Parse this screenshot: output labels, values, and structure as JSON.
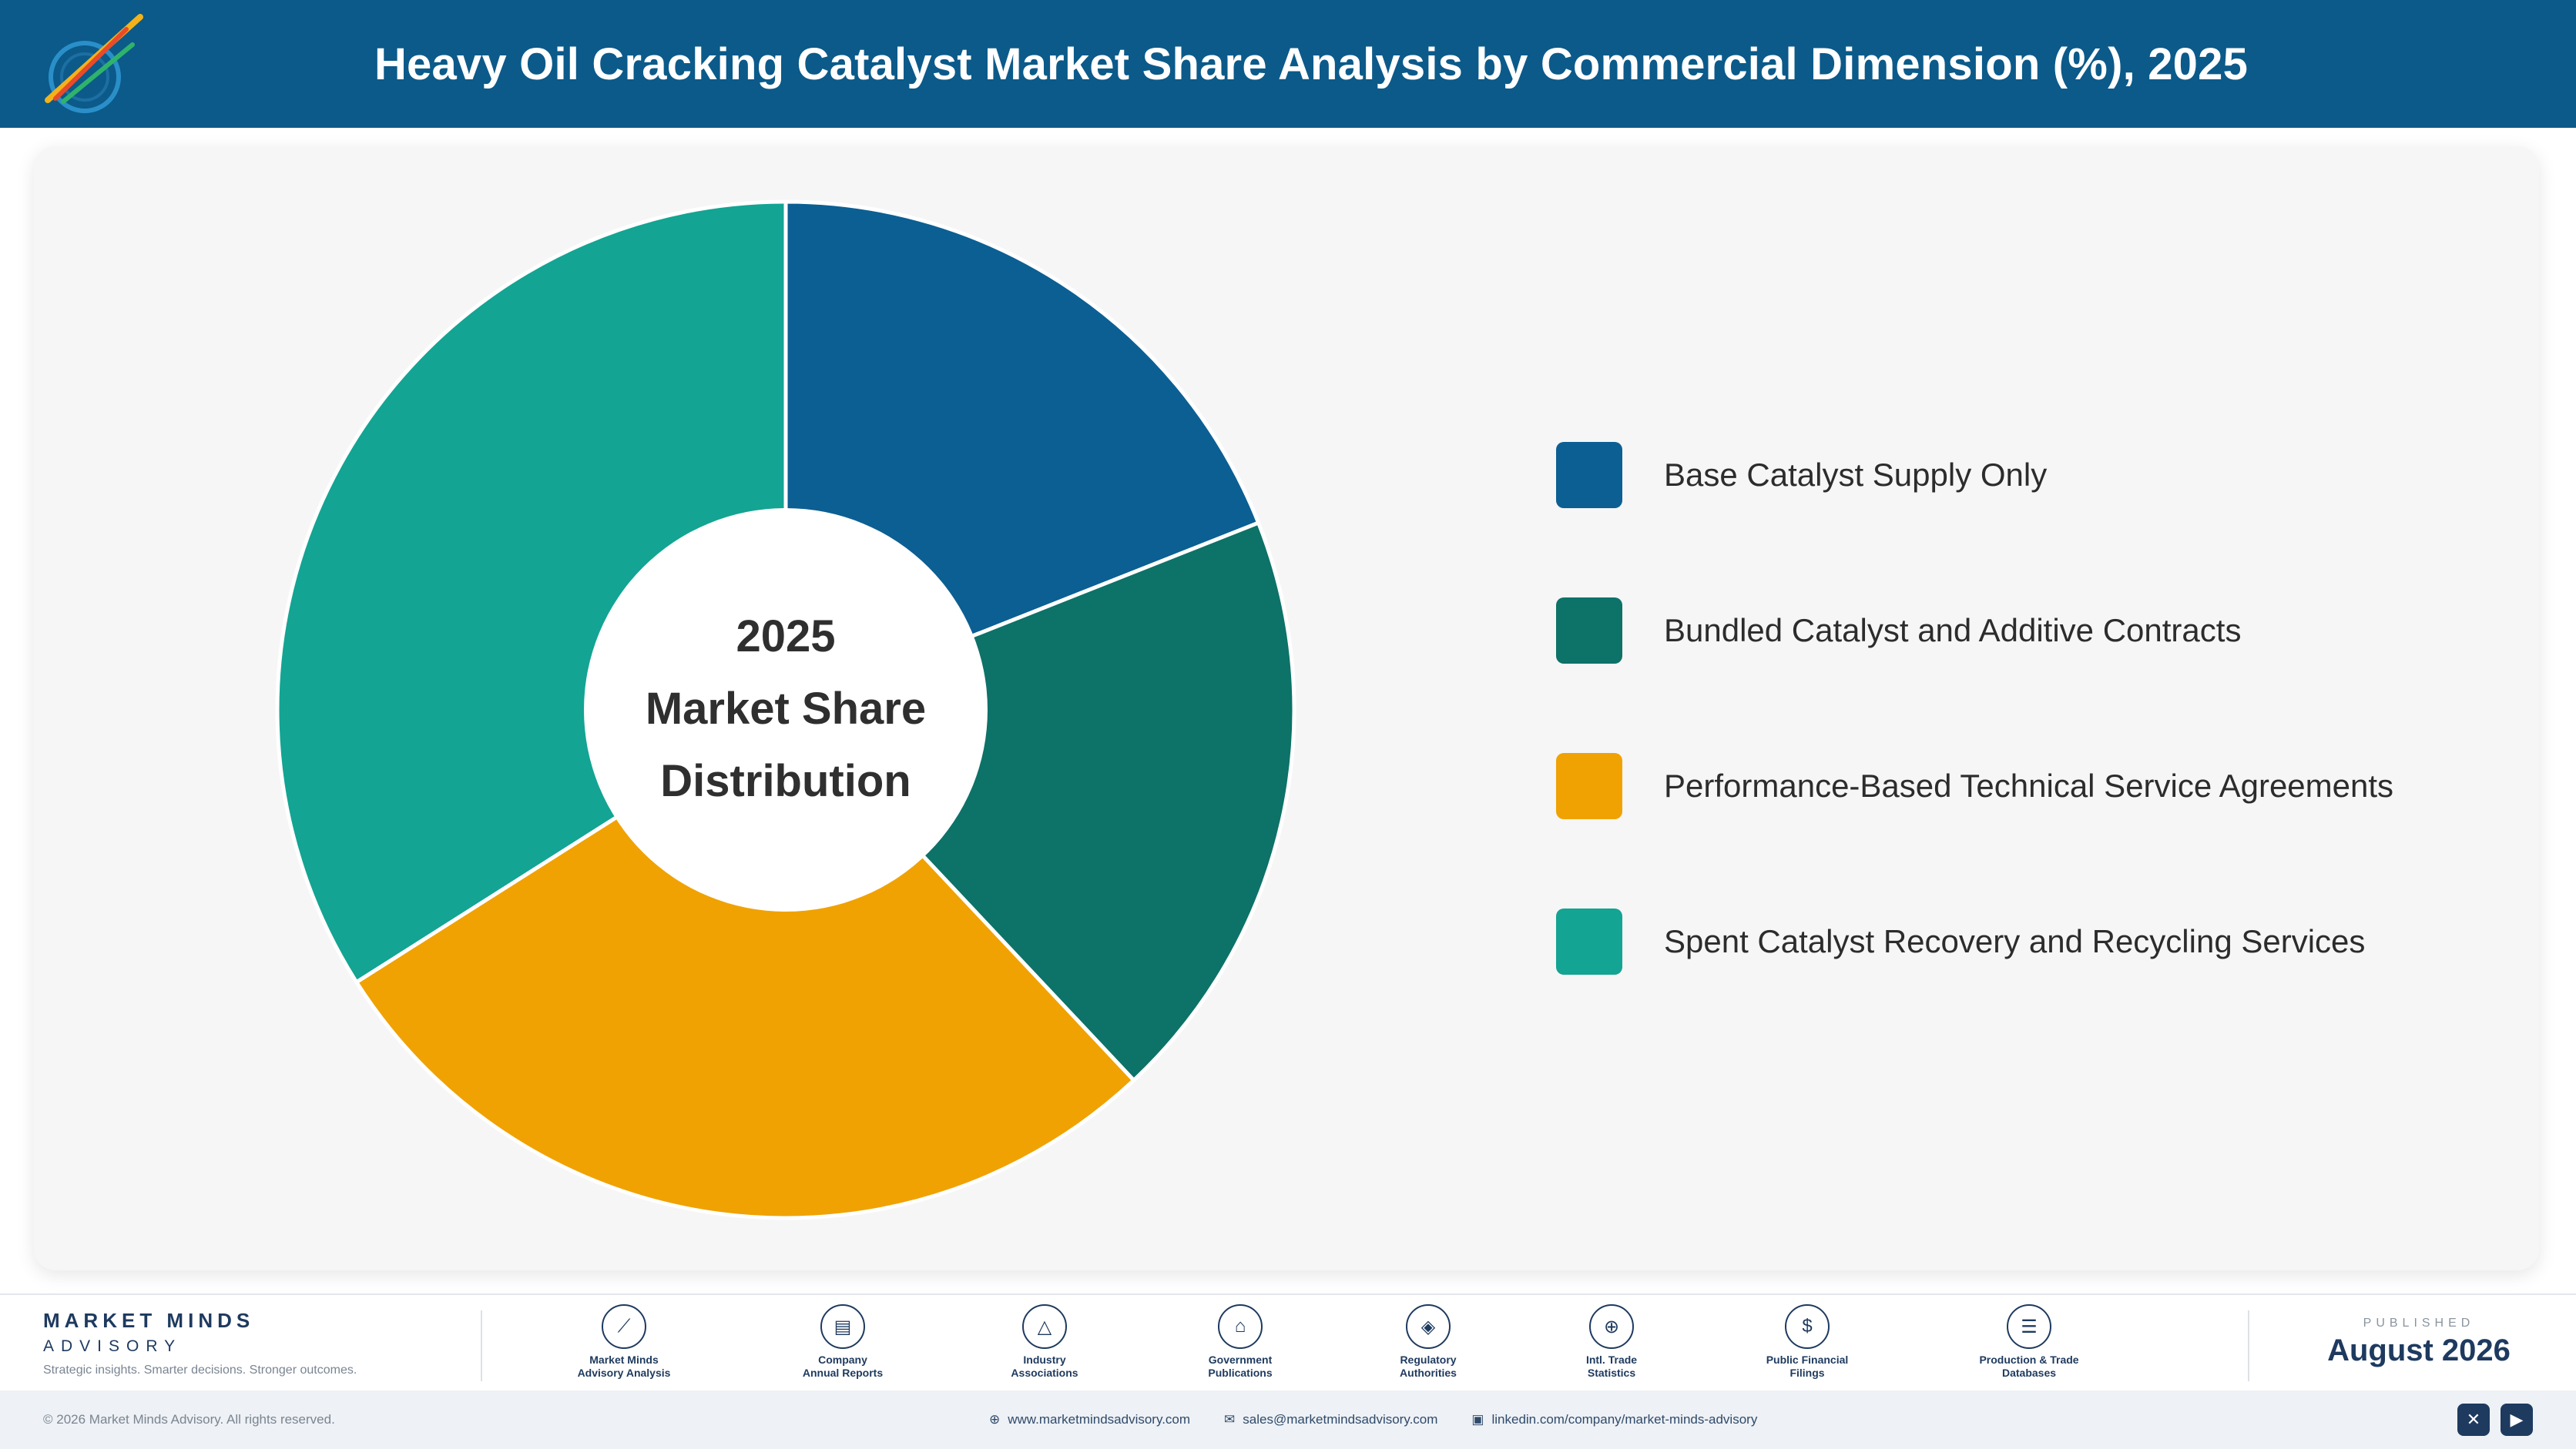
{
  "header": {
    "title": "Heavy Oil Cracking Catalyst Market Share Analysis by Commercial Dimension (%), 2025"
  },
  "chart_data": {
    "type": "pie",
    "center_label": [
      "2025",
      "Market Share",
      "Distribution"
    ],
    "categories": [
      "Base Catalyst Supply Only",
      "Bundled Catalyst and Additive Contracts",
      "Performance-Based Technical Service Agreements",
      "Spent Catalyst Recovery and Recycling Services"
    ],
    "values": [
      19,
      19,
      28,
      34
    ],
    "colors": [
      "#0b5f93",
      "#0d7268",
      "#f0a202",
      "#13a493"
    ],
    "legend_position": "right"
  },
  "footer": {
    "brand_line1": "MARKET MINDS",
    "brand_line2": "ADVISORY",
    "tagline": "Strategic insights. Smarter decisions. Stronger outcomes.",
    "sources": [
      {
        "icon": "trend-line-icon",
        "glyph": "⟋",
        "line1": "Market Minds",
        "line2": "Advisory Analysis"
      },
      {
        "icon": "document-icon",
        "glyph": "▤",
        "line1": "Company",
        "line2": "Annual Reports"
      },
      {
        "icon": "network-icon",
        "glyph": "△",
        "line1": "Industry",
        "line2": "Associations"
      },
      {
        "icon": "government-building-icon",
        "glyph": "⌂",
        "line1": "Government",
        "line2": "Publications"
      },
      {
        "icon": "shield-icon",
        "glyph": "◈",
        "line1": "Regulatory",
        "line2": "Authorities"
      },
      {
        "icon": "globe-icon",
        "glyph": "⊕",
        "line1": "Intl. Trade",
        "line2": "Statistics"
      },
      {
        "icon": "currency-icon",
        "glyph": "$",
        "line1": "Public Financial",
        "line2": "Filings"
      },
      {
        "icon": "database-icon",
        "glyph": "☰",
        "line1": "Production & Trade",
        "line2": "Databases"
      }
    ],
    "published_label": "PUBLISHED",
    "published_date": "August 2026",
    "copyright": "© 2026 Market Minds Advisory. All rights reserved.",
    "website": "www.marketmindsadvisory.com",
    "email": "sales@marketmindsadvisory.com",
    "linkedin": "linkedin.com/company/market-minds-advisory"
  }
}
